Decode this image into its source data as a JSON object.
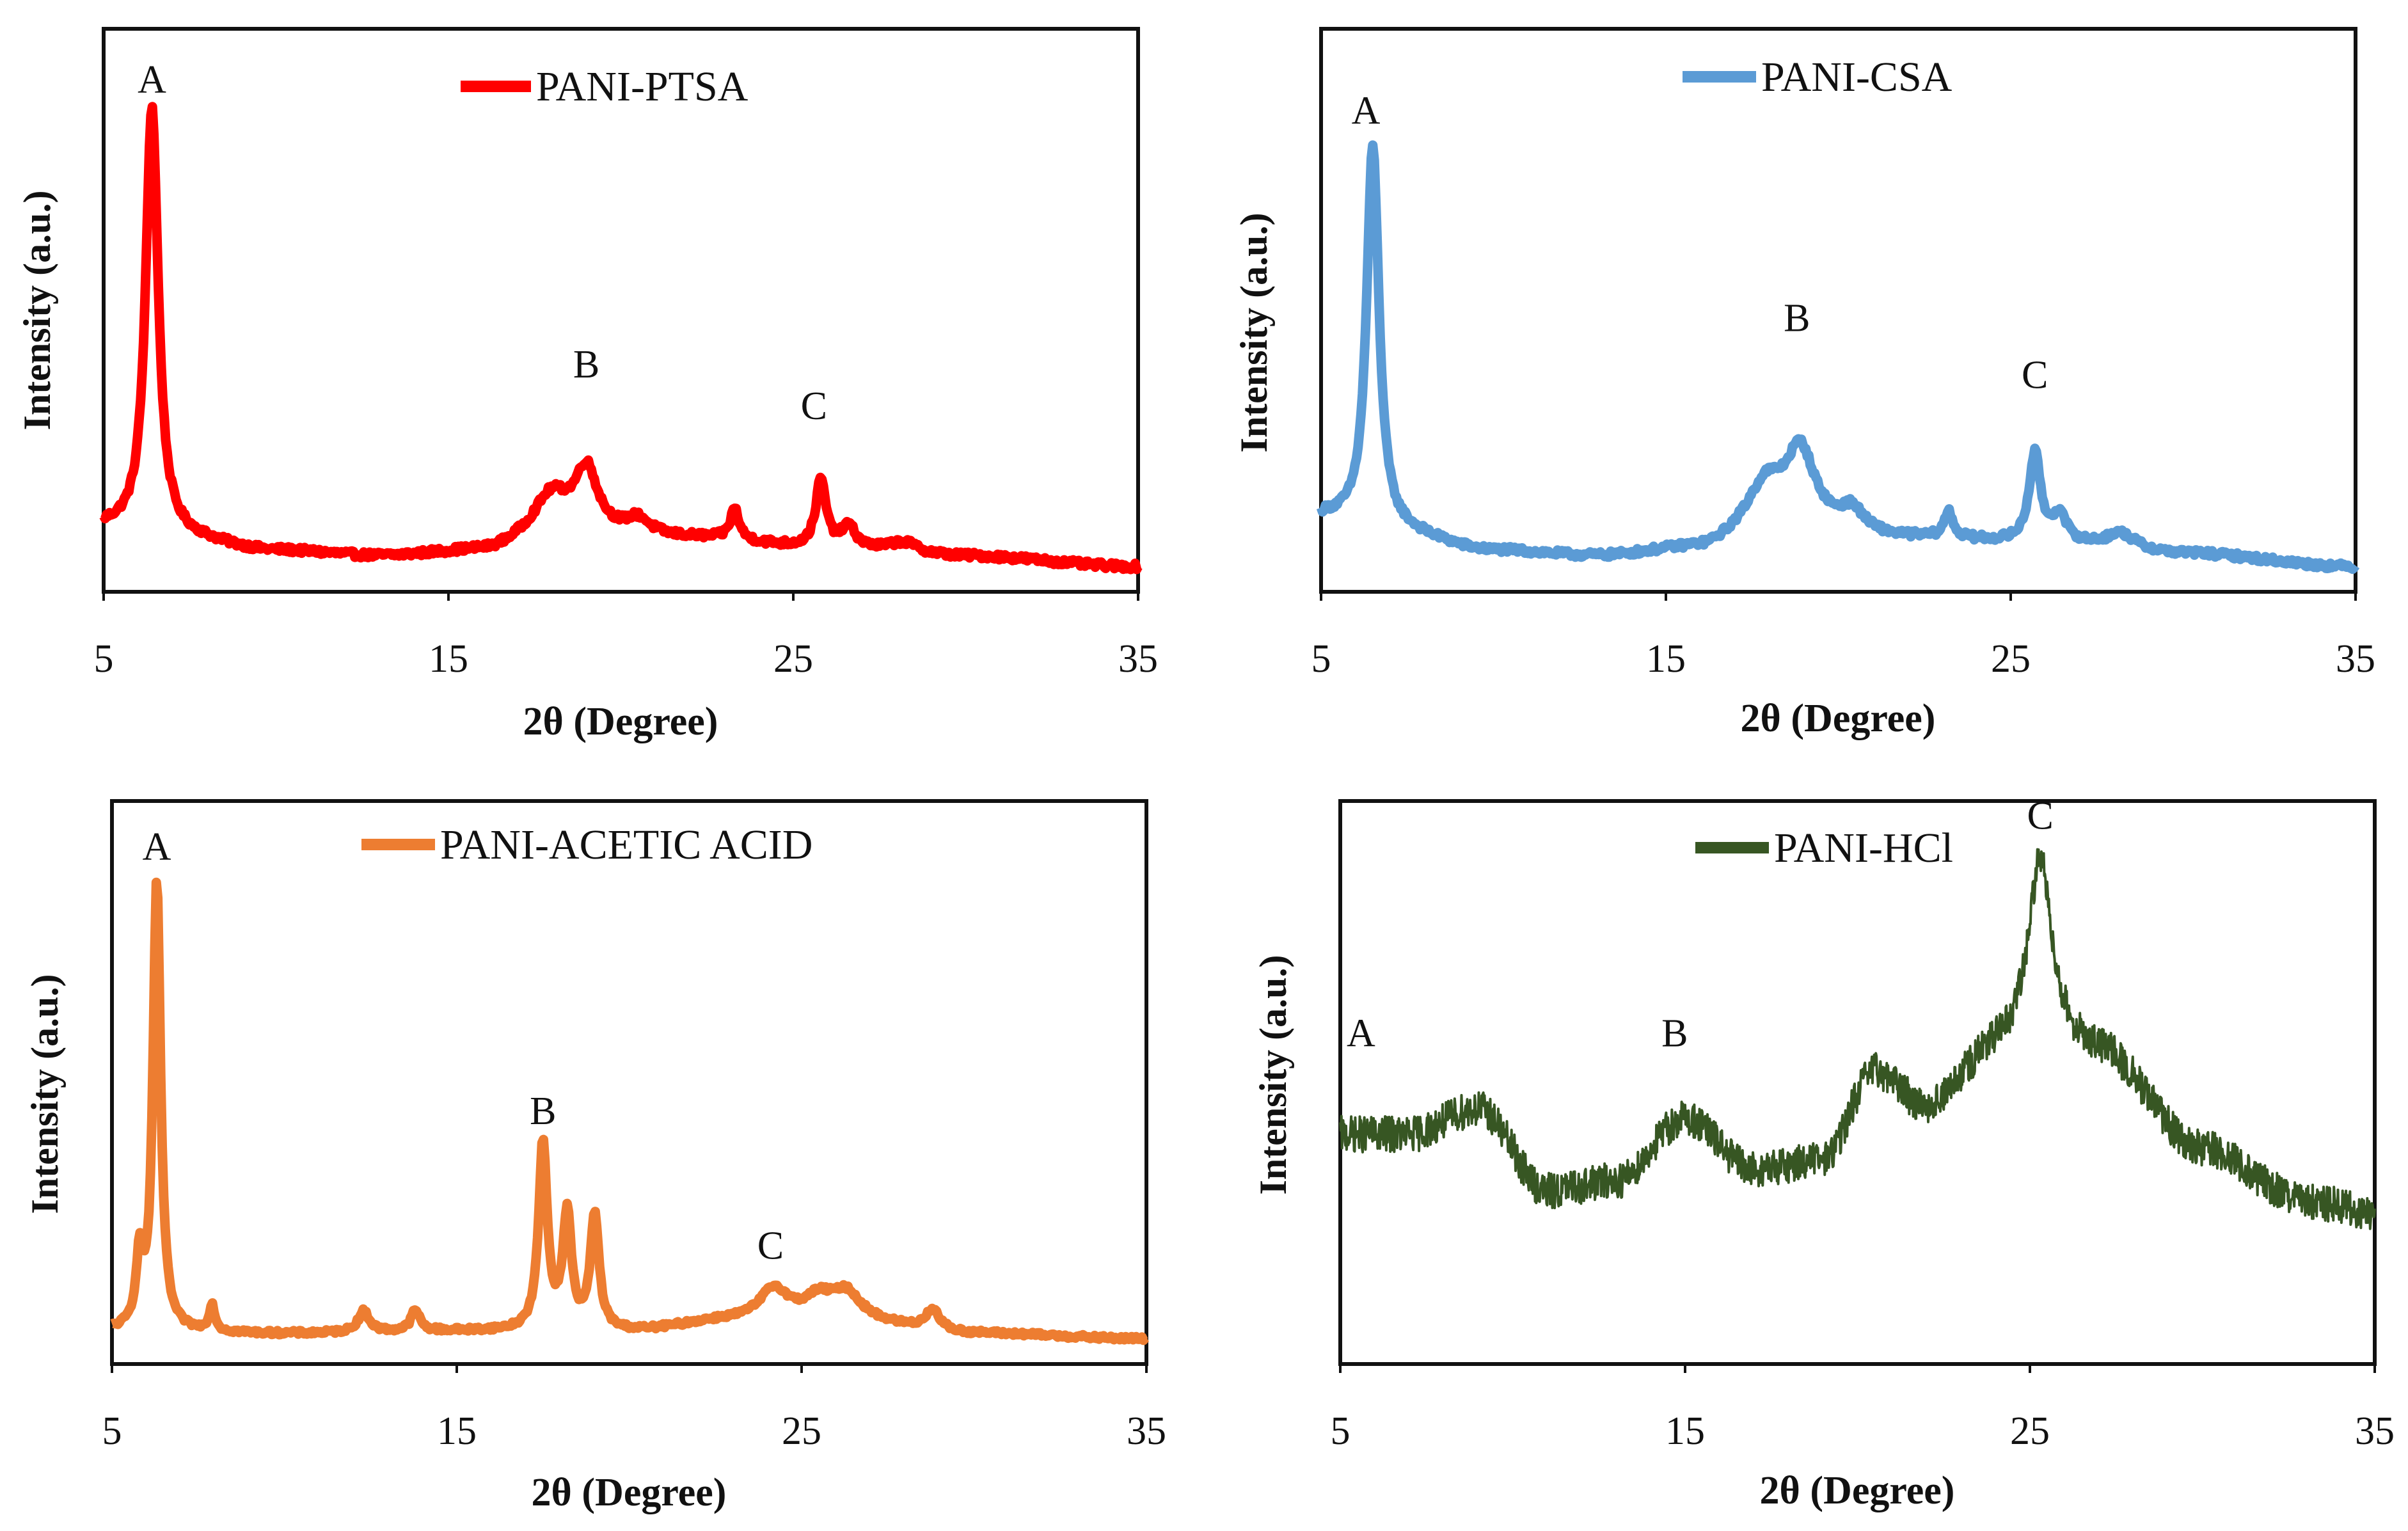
{
  "chart_data": [
    {
      "type": "line",
      "title": "PANI-PTSA",
      "legend": "PANI-PTSA",
      "color": "#ff0000",
      "xlabel": "2θ (Degree)",
      "ylabel": "Intensity (a.u.)",
      "xlim": [
        5,
        35
      ],
      "ylim": [
        0,
        100
      ],
      "xticks": [
        5,
        15,
        25,
        35
      ],
      "noise": 0.6,
      "baseline": [
        [
          5,
          8
        ],
        [
          7,
          6
        ],
        [
          10,
          3.5
        ],
        [
          13,
          2.5
        ],
        [
          16,
          3.5
        ],
        [
          18,
          7
        ],
        [
          22,
          6
        ],
        [
          26,
          4
        ],
        [
          30,
          2.5
        ],
        [
          35,
          0.5
        ]
      ],
      "peaks": [
        [
          6.4,
          83,
          0.22
        ],
        [
          18.0,
          7,
          0.6
        ],
        [
          19.0,
          12,
          0.4
        ],
        [
          20.5,
          3,
          0.4
        ],
        [
          23.3,
          6,
          0.15
        ],
        [
          25.8,
          13,
          0.18
        ],
        [
          26.6,
          4,
          0.25
        ],
        [
          28.2,
          2,
          0.5
        ]
      ],
      "peak_labels": [
        {
          "label": "A",
          "x": 6.4,
          "y": 92
        },
        {
          "label": "B",
          "x": 19.0,
          "y": 37
        },
        {
          "label": "C",
          "x": 25.6,
          "y": 29
        }
      ]
    },
    {
      "type": "line",
      "title": "PANI-CSA",
      "legend": "PANI-CSA",
      "color": "#5b9bd5",
      "xlabel": "2θ (Degree)",
      "ylabel": "Intensity (a.u.)",
      "xlim": [
        5,
        35
      ],
      "ylim": [
        0,
        100
      ],
      "xticks": [
        5,
        15,
        25,
        35
      ],
      "noise": 0.6,
      "baseline": [
        [
          5,
          10
        ],
        [
          7,
          7
        ],
        [
          10,
          3.5
        ],
        [
          13,
          2.5
        ],
        [
          16,
          4
        ],
        [
          18,
          9
        ],
        [
          22,
          6
        ],
        [
          26,
          5
        ],
        [
          30,
          3
        ],
        [
          35,
          0.5
        ]
      ],
      "peaks": [
        [
          6.5,
          74,
          0.22
        ],
        [
          17.9,
          7,
          0.6
        ],
        [
          18.9,
          14,
          0.5
        ],
        [
          20.4,
          4,
          0.4
        ],
        [
          23.2,
          5,
          0.15
        ],
        [
          25.7,
          17,
          0.2
        ],
        [
          26.4,
          5,
          0.25
        ],
        [
          28.2,
          3,
          0.5
        ]
      ],
      "peak_labels": [
        {
          "label": "A",
          "x": 6.3,
          "y": 86
        },
        {
          "label": "B",
          "x": 18.8,
          "y": 46
        },
        {
          "label": "C",
          "x": 25.7,
          "y": 35
        }
      ]
    },
    {
      "type": "line",
      "title": "PANI-ACETIC ACID",
      "legend": "PANI-ACETIC ACID",
      "color": "#ed7d31",
      "xlabel": "2θ (Degree)",
      "ylabel": "Intensity (a.u.)",
      "xlim": [
        5,
        35
      ],
      "ylim": [
        0,
        100
      ],
      "xticks": [
        5,
        15,
        25,
        35
      ],
      "noise": 0.4,
      "baseline": [
        [
          5,
          2
        ],
        [
          10,
          1.5
        ],
        [
          15,
          2
        ],
        [
          20,
          2
        ],
        [
          23,
          4
        ],
        [
          26,
          4
        ],
        [
          30,
          1.5
        ],
        [
          35,
          0.5
        ]
      ],
      "peaks": [
        [
          5.8,
          13,
          0.12
        ],
        [
          6.3,
          87,
          0.13
        ],
        [
          7.9,
          5,
          0.1
        ],
        [
          12.3,
          4,
          0.2
        ],
        [
          13.8,
          4,
          0.15
        ],
        [
          17.5,
          36,
          0.15
        ],
        [
          18.2,
          22,
          0.15
        ],
        [
          19.0,
          22,
          0.15
        ],
        [
          24.2,
          6,
          0.5
        ],
        [
          25.5,
          4,
          0.5
        ],
        [
          26.3,
          5,
          0.5
        ],
        [
          28.8,
          4,
          0.25
        ]
      ],
      "peak_labels": [
        {
          "label": "A",
          "x": 6.3,
          "y": 93
        },
        {
          "label": "B",
          "x": 17.5,
          "y": 42
        },
        {
          "label": "C",
          "x": 24.1,
          "y": 16
        }
      ]
    },
    {
      "type": "line",
      "title": "PANI-HCl",
      "legend": "PANI-HCl",
      "color": "#375623",
      "xlabel": "2θ (Degree)",
      "ylabel": "Intensity (a.u.)",
      "xlim": [
        5,
        35
      ],
      "ylim": [
        0,
        100
      ],
      "xticks": [
        5,
        15,
        25,
        35
      ],
      "noise": 3.5,
      "baseline": [
        [
          5,
          40
        ],
        [
          7,
          40
        ],
        [
          9,
          45
        ],
        [
          11,
          29
        ],
        [
          13,
          31
        ],
        [
          15,
          43
        ],
        [
          17,
          33
        ],
        [
          19,
          35
        ],
        [
          20.5,
          52
        ],
        [
          22,
          45
        ],
        [
          24,
          55
        ],
        [
          27,
          55
        ],
        [
          30,
          37
        ],
        [
          33,
          27
        ],
        [
          35,
          25
        ]
      ],
      "peaks": [
        [
          25.3,
          38,
          0.45
        ]
      ],
      "peak_labels": [
        {
          "label": "A",
          "x": 5.6,
          "y": 57
        },
        {
          "label": "B",
          "x": 14.7,
          "y": 57
        },
        {
          "label": "C",
          "x": 25.3,
          "y": 99
        }
      ]
    }
  ]
}
